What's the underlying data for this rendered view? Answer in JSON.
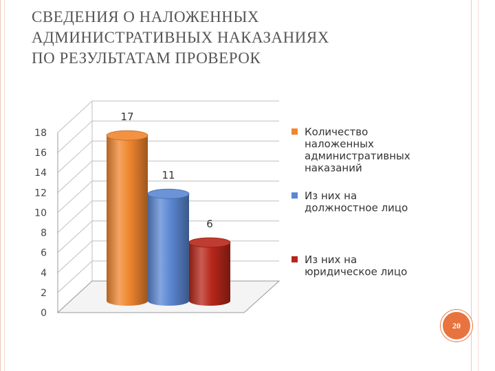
{
  "slide": {
    "title_lines": [
      "СВЕДЕНИЯ О НАЛОЖЕННЫХ",
      "АДМИНИСТРАТИВНЫХ НАКАЗАНИЯХ",
      "ПО РЕЗУЛЬТАТАМ ПРОВЕРОК"
    ],
    "page_number": "20",
    "border_colors": [
      "#f2c4b2",
      "#f7dcd2"
    ],
    "badge_color": "#e8733f"
  },
  "chart_data": {
    "type": "bar",
    "style": "3d-cylinder",
    "categories": [
      ""
    ],
    "series": [
      {
        "name": "Количество наложенных административных наказаний",
        "values": [
          17
        ],
        "color": "#f0862e",
        "legend_lines": [
          "Количество",
          "наложенных",
          "административных",
          "наказаний"
        ]
      },
      {
        "name": "Из них на должностное лицо",
        "values": [
          11
        ],
        "color": "#5b87d3",
        "legend_lines": [
          "Из них на",
          "должностное лицо"
        ]
      },
      {
        "name": "Из них на юридическое лицо",
        "values": [
          6
        ],
        "color": "#b7261a",
        "legend_lines": [
          "Из них на",
          "юридическое лицо"
        ]
      }
    ],
    "data_labels": [
      "17",
      "11",
      "6"
    ],
    "ylim": [
      0,
      18
    ],
    "yticks": [
      0,
      2,
      4,
      6,
      8,
      10,
      12,
      14,
      16,
      18
    ],
    "grid": true,
    "legend_position": "right"
  }
}
